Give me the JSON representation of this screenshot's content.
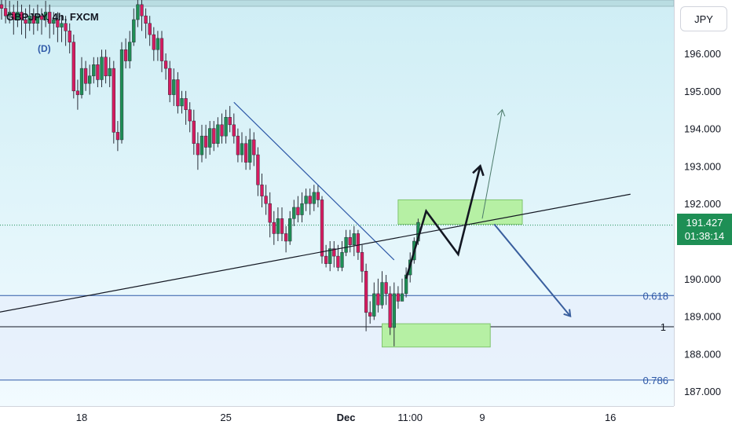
{
  "header": {
    "title": "GBPJPY, 4h, FXCM",
    "marker": "(D)",
    "currency": "JPY"
  },
  "last_price": {
    "value": "191.427",
    "countdown": "01:38:14"
  },
  "colors": {
    "background": "#ffffff",
    "tint_top": "#cfeef5",
    "tint_bottom": "#f2fbff",
    "fib_zone": "#e6f0fb",
    "up": "#1e8f55",
    "down": "#d81b60",
    "zone": "#b6f0a4",
    "projection_down": "#3a5f9e",
    "projection_up_thin": "#4b7a6a",
    "line": "#131722"
  },
  "chart_data": {
    "type": "candlestick",
    "symbol": "GBPJPY",
    "timeframe": "4h",
    "y_ticks": [
      "196.000",
      "195.000",
      "194.000",
      "193.000",
      "192.000",
      "191.000",
      "190.000",
      "189.000",
      "188.000",
      "187.000"
    ],
    "ylim": [
      186.7,
      197.2
    ],
    "x_ticks": [
      {
        "label": "18",
        "idx": 20
      },
      {
        "label": "25",
        "idx": 56
      },
      {
        "label": "Dec",
        "idx": 86
      },
      {
        "label": "11:00",
        "idx": 102
      },
      {
        "label": "9",
        "idx": 120
      },
      {
        "label": "16",
        "idx": 152
      }
    ],
    "fib_levels": [
      {
        "label": "0.618",
        "price": 189.55
      },
      {
        "label": "1",
        "price": 188.72
      },
      {
        "label": "0.786",
        "price": 187.3
      }
    ],
    "current_price": 191.427,
    "candles": [
      [
        197.3,
        197.2,
        197.7,
        196.9
      ],
      [
        197.2,
        197.0,
        197.5,
        196.8
      ],
      [
        197.0,
        197.1,
        197.4,
        196.8
      ],
      [
        197.1,
        196.9,
        197.3,
        196.5
      ],
      [
        196.9,
        197.1,
        197.4,
        196.7
      ],
      [
        197.1,
        196.9,
        197.3,
        196.5
      ],
      [
        196.9,
        196.8,
        197.2,
        196.4
      ],
      [
        196.8,
        197.0,
        197.3,
        196.6
      ],
      [
        197.0,
        196.8,
        197.2,
        196.5
      ],
      [
        196.8,
        197.0,
        197.3,
        196.6
      ],
      [
        197.0,
        196.9,
        197.2,
        196.5
      ],
      [
        196.9,
        197.1,
        197.4,
        196.7
      ],
      [
        197.1,
        196.8,
        197.3,
        196.4
      ],
      [
        196.8,
        196.9,
        197.1,
        196.5
      ],
      [
        196.9,
        196.7,
        197.1,
        196.3
      ],
      [
        196.7,
        196.8,
        197.0,
        196.3
      ],
      [
        196.8,
        196.6,
        197.0,
        196.2
      ],
      [
        196.6,
        196.3,
        196.8,
        196.0
      ],
      [
        196.3,
        195.0,
        196.5,
        194.8
      ],
      [
        195.0,
        194.9,
        195.3,
        194.5
      ],
      [
        194.9,
        195.6,
        195.9,
        194.8
      ],
      [
        195.6,
        195.2,
        195.8,
        195.0
      ],
      [
        195.2,
        195.4,
        195.7,
        194.9
      ],
      [
        195.4,
        195.7,
        195.9,
        195.2
      ],
      [
        195.7,
        195.3,
        195.9,
        195.1
      ],
      [
        195.3,
        195.9,
        196.1,
        195.1
      ],
      [
        195.9,
        195.4,
        196.1,
        195.2
      ],
      [
        195.4,
        195.6,
        195.9,
        195.1
      ],
      [
        195.6,
        193.9,
        195.8,
        193.6
      ],
      [
        193.9,
        193.7,
        194.2,
        193.4
      ],
      [
        193.7,
        196.1,
        196.3,
        193.6
      ],
      [
        196.1,
        195.8,
        196.4,
        195.6
      ],
      [
        195.8,
        196.3,
        196.6,
        195.6
      ],
      [
        196.3,
        196.9,
        197.2,
        196.2
      ],
      [
        196.9,
        197.3,
        197.6,
        196.7
      ],
      [
        197.3,
        197.0,
        197.6,
        196.6
      ],
      [
        197.0,
        196.8,
        197.2,
        196.4
      ],
      [
        196.8,
        196.5,
        197.0,
        196.2
      ],
      [
        196.5,
        196.1,
        196.7,
        195.8
      ],
      [
        196.1,
        196.4,
        196.6,
        195.8
      ],
      [
        196.4,
        195.8,
        196.6,
        195.5
      ],
      [
        195.8,
        195.6,
        196.0,
        195.3
      ],
      [
        195.6,
        194.9,
        195.8,
        194.7
      ],
      [
        194.9,
        195.3,
        195.6,
        194.6
      ],
      [
        195.3,
        194.6,
        195.5,
        194.4
      ],
      [
        194.6,
        194.8,
        195.0,
        194.4
      ],
      [
        194.8,
        194.5,
        195.0,
        194.1
      ],
      [
        194.5,
        194.2,
        194.7,
        193.9
      ],
      [
        194.2,
        193.6,
        194.5,
        193.3
      ],
      [
        193.6,
        193.3,
        193.9,
        192.9
      ],
      [
        193.3,
        193.8,
        194.1,
        193.1
      ],
      [
        193.8,
        193.5,
        194.1,
        193.2
      ],
      [
        193.5,
        194.0,
        194.2,
        193.3
      ],
      [
        194.0,
        193.6,
        194.2,
        193.4
      ],
      [
        193.6,
        194.1,
        194.3,
        193.5
      ],
      [
        194.1,
        193.8,
        194.4,
        193.6
      ],
      [
        193.8,
        194.3,
        194.5,
        193.6
      ],
      [
        194.3,
        194.1,
        194.6,
        193.9
      ],
      [
        194.1,
        193.8,
        194.4,
        193.6
      ],
      [
        193.8,
        193.3,
        194.0,
        193.1
      ],
      [
        193.3,
        193.6,
        193.9,
        193.1
      ],
      [
        193.6,
        193.1,
        193.8,
        192.9
      ],
      [
        193.1,
        193.7,
        194.0,
        192.9
      ],
      [
        193.7,
        193.3,
        193.9,
        193.0
      ],
      [
        193.3,
        192.5,
        193.5,
        192.2
      ],
      [
        192.5,
        192.2,
        192.8,
        191.9
      ],
      [
        192.2,
        192.0,
        192.5,
        191.7
      ],
      [
        192.0,
        191.5,
        192.3,
        191.1
      ],
      [
        191.5,
        191.2,
        191.8,
        190.9
      ],
      [
        191.2,
        191.6,
        191.9,
        191.0
      ],
      [
        191.6,
        191.2,
        191.9,
        191.0
      ],
      [
        191.2,
        191.0,
        191.4,
        190.7
      ],
      [
        191.0,
        191.6,
        191.8,
        190.9
      ],
      [
        191.6,
        191.9,
        192.1,
        191.4
      ],
      [
        191.9,
        191.7,
        192.2,
        191.5
      ],
      [
        191.7,
        192.0,
        192.3,
        191.5
      ],
      [
        192.0,
        192.2,
        192.4,
        191.8
      ],
      [
        192.2,
        192.0,
        192.4,
        191.7
      ],
      [
        192.0,
        192.3,
        192.5,
        191.8
      ],
      [
        192.3,
        192.1,
        192.5,
        191.9
      ],
      [
        192.1,
        190.6,
        192.2,
        190.4
      ],
      [
        190.6,
        190.4,
        190.9,
        190.3
      ],
      [
        190.4,
        190.8,
        191.0,
        190.2
      ],
      [
        190.8,
        190.6,
        191.0,
        190.3
      ],
      [
        190.6,
        190.3,
        190.9,
        190.2
      ],
      [
        190.3,
        190.7,
        191.0,
        190.2
      ],
      [
        190.7,
        191.1,
        191.3,
        190.6
      ],
      [
        191.1,
        190.9,
        191.3,
        190.7
      ],
      [
        190.9,
        191.2,
        191.4,
        190.6
      ],
      [
        191.2,
        190.7,
        191.3,
        190.5
      ],
      [
        190.7,
        190.2,
        190.9,
        189.9
      ],
      [
        190.2,
        189.1,
        190.4,
        188.6
      ],
      [
        189.1,
        189.0,
        189.4,
        188.8
      ],
      [
        189.0,
        189.6,
        189.9,
        188.9
      ],
      [
        189.6,
        189.3,
        190.0,
        189.1
      ],
      [
        189.3,
        189.9,
        190.2,
        189.2
      ],
      [
        189.9,
        189.6,
        190.1,
        189.3
      ],
      [
        189.6,
        188.7,
        189.8,
        188.5
      ],
      [
        188.7,
        189.6,
        189.9,
        188.2
      ],
      [
        189.6,
        189.4,
        189.8,
        189.2
      ],
      [
        189.4,
        189.6,
        190.0,
        189.4
      ],
      [
        189.6,
        190.1,
        190.3,
        189.5
      ],
      [
        190.1,
        190.5,
        190.7,
        189.9
      ],
      [
        190.5,
        191.0,
        191.1,
        190.4
      ],
      [
        191.0,
        191.5,
        191.6,
        190.9
      ]
    ],
    "trendlines": [
      {
        "name": "descending-trendline",
        "from": [
          58,
          194.7
        ],
        "to": [
          98,
          190.5
        ]
      },
      {
        "name": "rising-trendline",
        "from": [
          -6,
          189.0
        ],
        "to": [
          157,
          192.25
        ]
      }
    ],
    "zones": [
      {
        "name": "resistance-zone",
        "x": [
          99,
          130
        ],
        "y": [
          191.45,
          192.1
        ]
      },
      {
        "name": "support-zone",
        "x": [
          95,
          122
        ],
        "y": [
          188.18,
          188.8
        ]
      }
    ],
    "projections": [
      {
        "name": "bullish-projection",
        "points": [
          [
            101,
            190.0
          ],
          [
            106,
            191.8
          ],
          [
            114,
            190.65
          ],
          [
            119.5,
            193.0
          ]
        ]
      },
      {
        "name": "bearish-projection",
        "points": [
          [
            123,
            191.45
          ],
          [
            142,
            189.0
          ]
        ]
      },
      {
        "name": "long-target-arrow",
        "points": [
          [
            120,
            191.6
          ],
          [
            125,
            194.5
          ]
        ]
      }
    ]
  }
}
